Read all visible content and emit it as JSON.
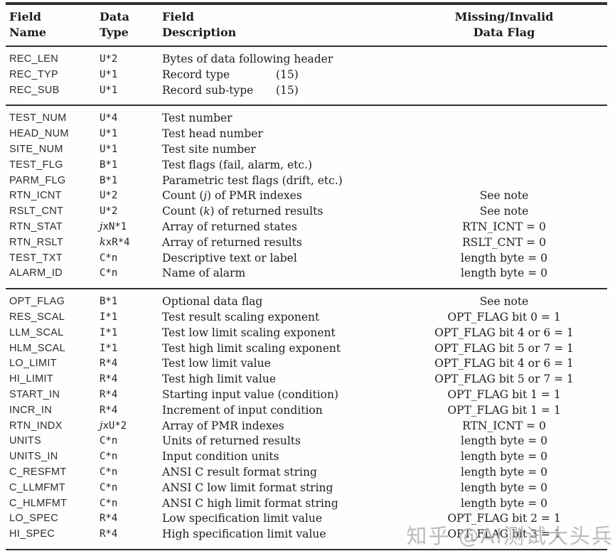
{
  "header": {
    "cols": [
      {
        "line1": "Field",
        "line2": "Name"
      },
      {
        "line1": "Data",
        "line2": "Type"
      },
      {
        "line1": "Field",
        "line2": "Description"
      },
      {
        "line1": "Missing/Invalid",
        "line2": "Data Flag"
      }
    ]
  },
  "sections": [
    {
      "rows": [
        {
          "name": "REC_LEN",
          "type": "U*2",
          "desc": "Bytes of data following header",
          "flag": ""
        },
        {
          "name": "REC_TYP",
          "type": "U*1",
          "desc": "Record type",
          "note": "(15)",
          "flag": ""
        },
        {
          "name": "REC_SUB",
          "type": "U*1",
          "desc": "Record sub-type",
          "note": "(15)",
          "flag": ""
        }
      ]
    },
    {
      "rows": [
        {
          "name": "TEST_NUM",
          "type": "U*4",
          "desc": "Test number",
          "flag": ""
        },
        {
          "name": "HEAD_NUM",
          "type": "U*1",
          "desc": "Test head number",
          "flag": ""
        },
        {
          "name": "SITE_NUM",
          "type": "U*1",
          "desc": "Test site number",
          "flag": ""
        },
        {
          "name": "TEST_FLG",
          "type": "B*1",
          "desc": "Test flags (fail, alarm, etc.)",
          "flag": ""
        },
        {
          "name": "PARM_FLG",
          "type": "B*1",
          "desc": "Parametric test flags (drift, etc.)",
          "flag": ""
        },
        {
          "name": "RTN_ICNT",
          "type": "U*2",
          "desc": "Count (j) of PMR indexes",
          "flag": "See note"
        },
        {
          "name": "RSLT_CNT",
          "type": "U*2",
          "desc": "Count (k) of returned results",
          "flag": "See note"
        },
        {
          "name": "RTN_STAT",
          "type": "jxN*1",
          "desc": "Array of returned states",
          "flag": "RTN_ICNT = 0"
        },
        {
          "name": "RTN_RSLT",
          "type": "kxR*4",
          "desc": "Array of returned results",
          "flag": "RSLT_CNT = 0"
        },
        {
          "name": "TEST_TXT",
          "type": "C*n",
          "desc": "Descriptive text or label",
          "flag": "length byte = 0"
        },
        {
          "name": "ALARM_ID",
          "type": "C*n",
          "desc": "Name of alarm",
          "flag": "length byte = 0"
        }
      ]
    },
    {
      "rows": [
        {
          "name": "OPT_FLAG",
          "type": "B*1",
          "desc": "Optional data flag",
          "flag": "See note"
        },
        {
          "name": "RES_SCAL",
          "type": "I*1",
          "desc": "Test result scaling exponent",
          "flag": "OPT_FLAG bit 0 = 1"
        },
        {
          "name": "LLM_SCAL",
          "type": "I*1",
          "desc": "Test low limit scaling exponent",
          "flag": "OPT_FLAG bit 4 or 6 = 1"
        },
        {
          "name": "HLM_SCAL",
          "type": "I*1",
          "desc": "Test high limit scaling exponent",
          "flag": "OPT_FLAG bit 5 or 7 = 1"
        },
        {
          "name": "LO_LIMIT",
          "type": "R*4",
          "desc": "Test low limit value",
          "flag": "OPT_FLAG bit 4 or 6 = 1"
        },
        {
          "name": "HI_LIMIT",
          "type": "R*4",
          "desc": "Test high limit value",
          "flag": "OPT_FLAG bit 5 or 7 = 1"
        },
        {
          "name": "START_IN",
          "type": "R*4",
          "desc": "Starting input value (condition)",
          "flag": "OPT_FLAG bit 1 = 1"
        },
        {
          "name": "INCR_IN",
          "type": "R*4",
          "desc": "Increment of input condition",
          "flag": "OPT_FLAG bit 1 = 1"
        },
        {
          "name": "RTN_INDX",
          "type": "jxU*2",
          "desc": "Array of PMR indexes",
          "flag": "RTN_ICNT = 0"
        },
        {
          "name": "UNITS",
          "type": "C*n",
          "desc": "Units of returned results",
          "flag": "length byte = 0"
        },
        {
          "name": "UNITS_IN",
          "type": "C*n",
          "desc": "Input condition units",
          "flag": "length byte = 0"
        },
        {
          "name": "C_RESFMT",
          "type": "C*n",
          "desc": "ANSI C result format string",
          "flag": "length byte = 0"
        },
        {
          "name": "C_LLMFMT",
          "type": "C*n",
          "desc": "ANSI C low limit format string",
          "flag": "length byte = 0"
        },
        {
          "name": "C_HLMFMT",
          "type": "C*n",
          "desc": "ANSI C high limit format string",
          "flag": "length byte = 0"
        },
        {
          "name": "LO_SPEC",
          "type": "R*4",
          "desc": "Low specification limit value",
          "flag": "OPT_FLAG bit 2 = 1"
        },
        {
          "name": "HI_SPEC",
          "type": "R*4",
          "desc": "High specification limit value",
          "flag": "OPT_FLAG bit 3 = 1"
        }
      ]
    }
  ],
  "watermark": {
    "text": "知乎 @AI测试大头兵"
  }
}
